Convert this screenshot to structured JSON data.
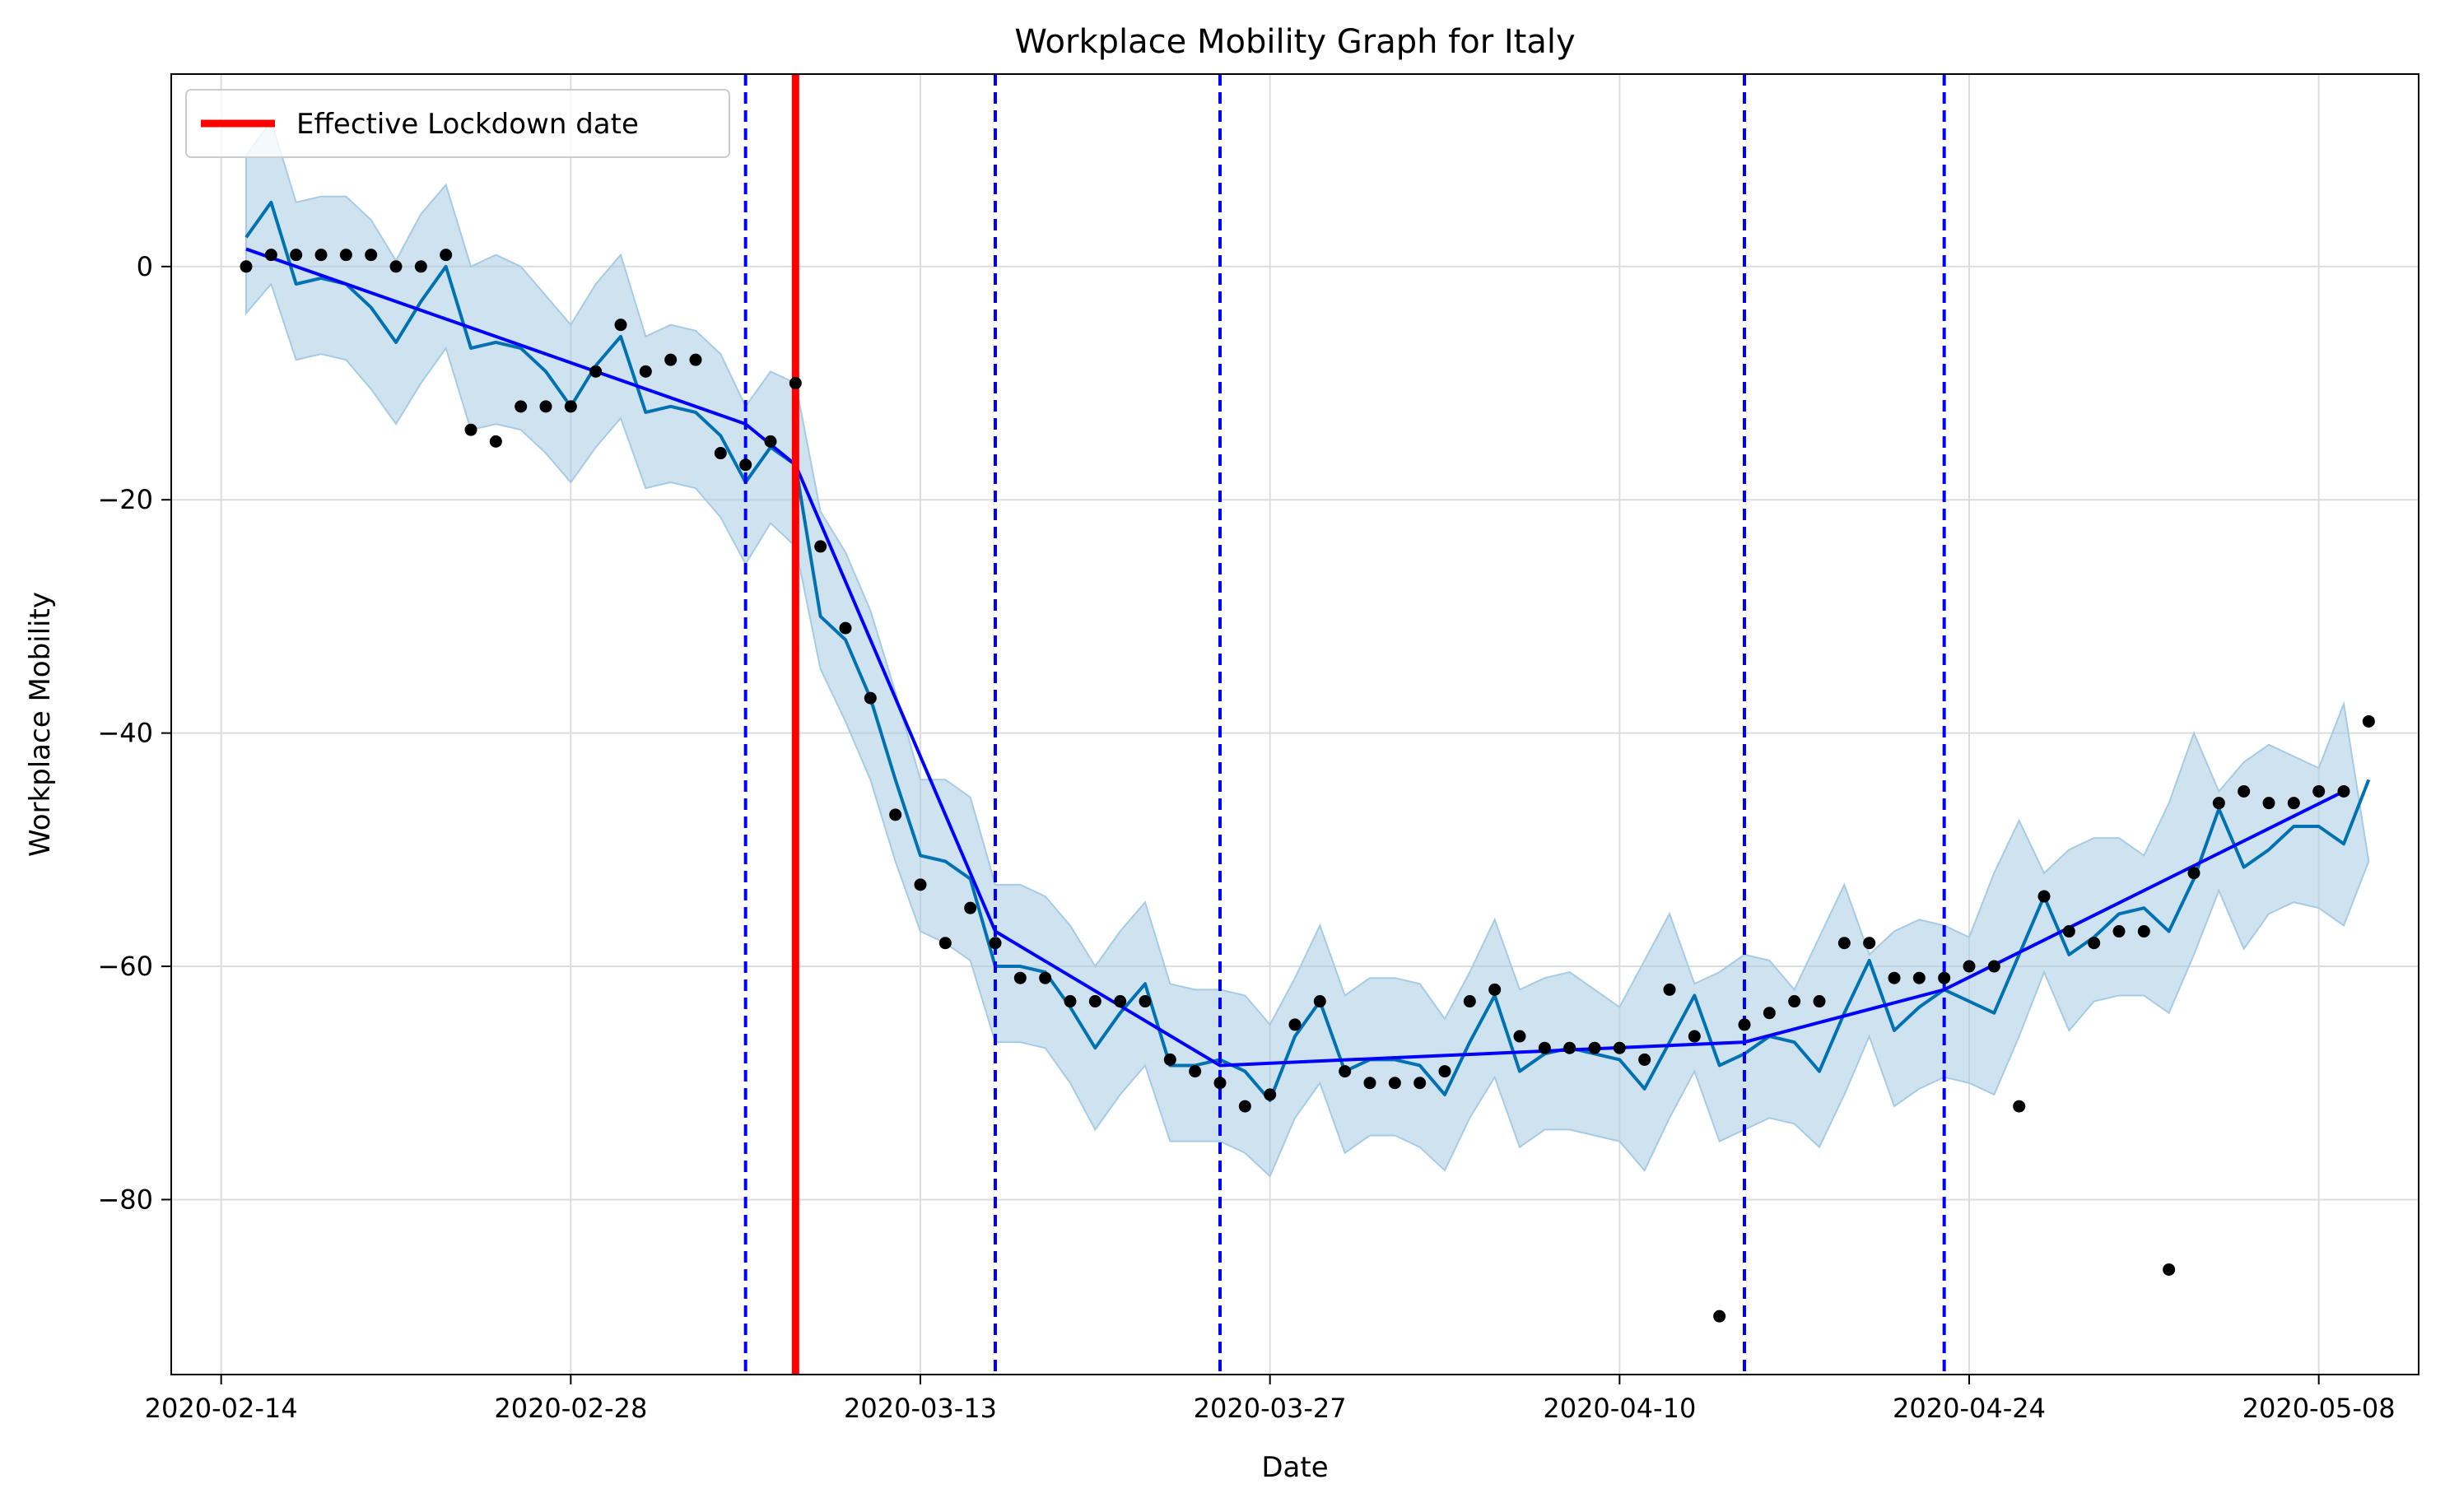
{
  "chart_data": {
    "type": "line",
    "title": "Workplace Mobility Graph for Italy",
    "xlabel": "Date",
    "ylabel": "Workplace Mobility",
    "start_date": "2020-02-15",
    "xlim": [
      "2020-02-12",
      "2020-05-12"
    ],
    "ylim": [
      -95,
      16.5
    ],
    "x_ticks": [
      "2020-02-14",
      "2020-02-28",
      "2020-03-13",
      "2020-03-27",
      "2020-04-10",
      "2020-04-24",
      "2020-05-08"
    ],
    "y_ticks": [
      0,
      -20,
      -40,
      -60,
      -80
    ],
    "y_tick_labels": [
      "0",
      "−20",
      "−40",
      "−60",
      "−80"
    ],
    "grid": true,
    "legend": {
      "placement": "top-left",
      "entries": [
        {
          "label": "Effective Lockdown date",
          "color": "#ff0000"
        }
      ]
    },
    "lockdown_date": "2020-03-08",
    "changepoints": [
      "2020-03-06",
      "2020-03-16",
      "2020-03-25",
      "2020-04-15",
      "2020-04-23"
    ],
    "colors": {
      "forecast": "#0072b2",
      "band": "#a6cbe3",
      "trend": "#0000ff",
      "lockdown": "#ff0000",
      "changepoint": "#0000ff",
      "points": "#000000"
    },
    "observed": [
      0,
      1,
      1,
      1,
      1,
      1,
      0,
      0,
      1,
      -14,
      -15,
      -12,
      -12,
      -12,
      -9,
      -5,
      -9,
      -8,
      -8,
      -16,
      -17,
      -15,
      -10,
      -24,
      -31,
      -37,
      -47,
      -53,
      -58,
      -55,
      -58,
      -61,
      -61,
      -63,
      -63,
      -63,
      -63,
      -68,
      -69,
      -70,
      -72,
      -71,
      -65,
      -63,
      -69,
      -70,
      -70,
      -70,
      -69,
      -63,
      -62,
      -66,
      -67,
      -67,
      -67,
      -67,
      -68,
      -62,
      -66,
      -90,
      -65,
      -64,
      -63,
      -63,
      -58,
      -58,
      -61,
      -61,
      -61,
      -60,
      -60,
      -72,
      -54,
      -57,
      -58,
      -57,
      -57,
      -86,
      -52,
      -46,
      -45,
      -46,
      -46,
      -45,
      -45,
      -39
    ],
    "forecast": [
      2.5,
      5.5,
      -1.5,
      -1,
      -1.5,
      -3.5,
      -6.5,
      -3,
      0,
      -7,
      -6.5,
      -7,
      -9,
      -12,
      -8.5,
      -6,
      -12.5,
      -12,
      -12.5,
      -14.5,
      -18.5,
      -15.5,
      -17,
      -30,
      -32,
      -37,
      -44,
      -50.5,
      -51,
      -52.5,
      -60,
      -60,
      -60.5,
      -63.5,
      -67,
      -64,
      -61.5,
      -68.5,
      -68.5,
      -68,
      -69,
      -71.5,
      -66,
      -63,
      -69,
      -68,
      -68,
      -68.5,
      -71,
      -66.5,
      -62.5,
      -69,
      -67.5,
      -67,
      -67.5,
      -68,
      -70.5,
      -66.5,
      -62.5,
      -68.5,
      -67.5,
      -66,
      -66.5,
      -69,
      -64,
      -59.5,
      -65.5,
      -63.5,
      -62,
      -63,
      -64,
      -59,
      -54,
      -59,
      -57.5,
      -55.5,
      -55,
      -57,
      -52.5,
      -46.5,
      -51.5,
      -50,
      -48,
      -48,
      -49.5,
      -44
    ],
    "band_upper": [
      9.5,
      12.5,
      5.5,
      6,
      6,
      4,
      0.5,
      4.5,
      7,
      0,
      1,
      0,
      -2.5,
      -5,
      -1.5,
      1,
      -6,
      -5,
      -5.5,
      -7.5,
      -12,
      -9,
      -10,
      -21,
      -24.5,
      -29.5,
      -36.5,
      -44,
      -44,
      -45.5,
      -53,
      -53,
      -54,
      -56.5,
      -60,
      -57,
      -54.5,
      -61.5,
      -62,
      -62,
      -62.5,
      -65,
      -61,
      -56.5,
      -62.5,
      -61,
      -61,
      -61.5,
      -64.5,
      -60.5,
      -56,
      -62,
      -61,
      -60.5,
      -62,
      -63.5,
      -59.5,
      -55.5,
      -61.5,
      -60.5,
      -59,
      -59.5,
      -62,
      -57.5,
      -53,
      -59,
      -57,
      -56,
      -56.5,
      -57.5,
      -52,
      -47.5,
      -52,
      -50,
      -49,
      -49,
      -50.5,
      -46,
      -40,
      -45,
      -42.5,
      -41,
      -42,
      -43,
      -37.5
    ],
    "band_lower": [
      -4,
      -1.5,
      -8,
      -7.5,
      -8,
      -10.5,
      -13.5,
      -10,
      -7,
      -14,
      -13.5,
      -14,
      -16,
      -18.5,
      -15.5,
      -13,
      -19,
      -18.5,
      -19,
      -21.5,
      -25.5,
      -22,
      -24,
      -34.5,
      -39,
      -44,
      -51,
      -57,
      -58,
      -59.5,
      -66.5,
      -66.5,
      -67,
      -70,
      -74,
      -71,
      -68.5,
      -75,
      -75,
      -75,
      -76,
      -78,
      -73,
      -70,
      -76,
      -74.5,
      -74.5,
      -75.5,
      -77.5,
      -73,
      -69.5,
      -75.5,
      -74,
      -74,
      -74.5,
      -75,
      -77.5,
      -73,
      -69,
      -75,
      -74,
      -73,
      -73.5,
      -75.5,
      -71,
      -66,
      -72,
      -70.5,
      -69.5,
      -70,
      -71,
      -66,
      -60.5,
      -65.5,
      -63,
      -62.5,
      -62.5,
      -64,
      -59,
      -53.5,
      -58.5,
      -55.5,
      -54.5,
      -55,
      -56.5,
      -51
    ],
    "trend": [
      {
        "date": "2020-02-15",
        "value": 1.5
      },
      {
        "date": "2020-03-06",
        "value": -13.5
      },
      {
        "date": "2020-03-08",
        "value": -17
      },
      {
        "date": "2020-03-16",
        "value": -57
      },
      {
        "date": "2020-03-25",
        "value": -68.5
      },
      {
        "date": "2020-04-15",
        "value": -66.5
      },
      {
        "date": "2020-04-23",
        "value": -62
      },
      {
        "date": "2020-05-09",
        "value": -45
      }
    ]
  }
}
